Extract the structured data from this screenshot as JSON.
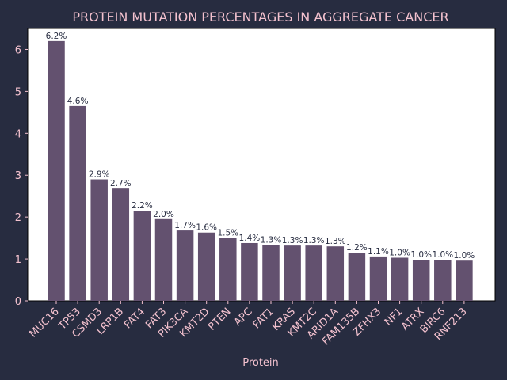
{
  "colors": {
    "background": "#272c40",
    "plot_background": "#ffffff",
    "bar": "#63516f",
    "text": "#f4c2cf",
    "data_label": "#272c40"
  },
  "chart_data": {
    "type": "bar",
    "title": "PROTEIN MUTATION PERCENTAGES IN AGGREGATE CANCER",
    "xlabel": "Protein",
    "ylabel": "",
    "ylim": [
      0,
      6.5
    ],
    "yticks": [
      0,
      1,
      2,
      3,
      4,
      5,
      6
    ],
    "grid": false,
    "categories": [
      "MUC16",
      "TP53",
      "CSMD3",
      "LRP1B",
      "FAT4",
      "FAT3",
      "PIK3CA",
      "KMT2D",
      "PTEN",
      "APC",
      "FAT1",
      "KRAS",
      "KMT2C",
      "ARID1A",
      "FAM135B",
      "ZFHX3",
      "NF1",
      "ATRX",
      "BIRC6",
      "RNF213"
    ],
    "values": [
      6.2,
      4.65,
      2.9,
      2.68,
      2.15,
      1.95,
      1.68,
      1.63,
      1.5,
      1.38,
      1.33,
      1.32,
      1.32,
      1.3,
      1.15,
      1.06,
      1.03,
      0.98,
      0.98,
      0.96
    ],
    "data_labels": [
      "6.2%",
      "4.6%",
      "2.9%",
      "2.7%",
      "2.2%",
      "2.0%",
      "1.7%",
      "1.6%",
      "1.5%",
      "1.4%",
      "1.3%",
      "1.3%",
      "1.3%",
      "1.3%",
      "1.2%",
      "1.1%",
      "1.0%",
      "1.0%",
      "1.0%",
      "1.0%"
    ]
  }
}
